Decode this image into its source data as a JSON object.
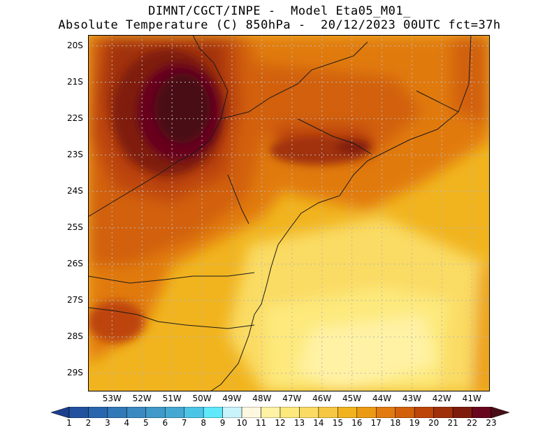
{
  "title_line1": "DIMNT/CGCT/INPE -  Model Eta05_M01_",
  "title_line2": "Absolute Temperature (C) 850hPa -  20/12/2023 00UTC fct=37h",
  "lat_labels": [
    "20S",
    "21S",
    "22S",
    "23S",
    "24S",
    "25S",
    "26S",
    "27S",
    "28S",
    "29S"
  ],
  "lon_labels": [
    "53W",
    "52W",
    "51W",
    "50W",
    "49W",
    "48W",
    "47W",
    "46W",
    "45W",
    "44W",
    "43W",
    "42W",
    "41W"
  ],
  "colorbar": {
    "labels": [
      "1",
      "2",
      "3",
      "4",
      "5",
      "6",
      "7",
      "8",
      "9",
      "10",
      "11",
      "12",
      "13",
      "14",
      "15",
      "16",
      "17",
      "18",
      "19",
      "20",
      "21",
      "22",
      "23"
    ],
    "colors": [
      "#1c3f8f",
      "#22529f",
      "#2966ad",
      "#3279b8",
      "#3a89c1",
      "#3f99c9",
      "#44a8d3",
      "#4cc4e6",
      "#5fe9fb",
      "#c9f4fb",
      "#fff8e0",
      "#fff2a4",
      "#fde97c",
      "#fadb63",
      "#f6c742",
      "#f1b41f",
      "#eb9a13",
      "#e17a0f",
      "#d2600b",
      "#bd450a",
      "#a03009",
      "#7f1b0c",
      "#67061d",
      "#4a0f16"
    ]
  },
  "grid": {
    "lat_min": -29.5,
    "lat_max": -19.7,
    "lon_min": -53.8,
    "lon_max": -40.4
  }
}
